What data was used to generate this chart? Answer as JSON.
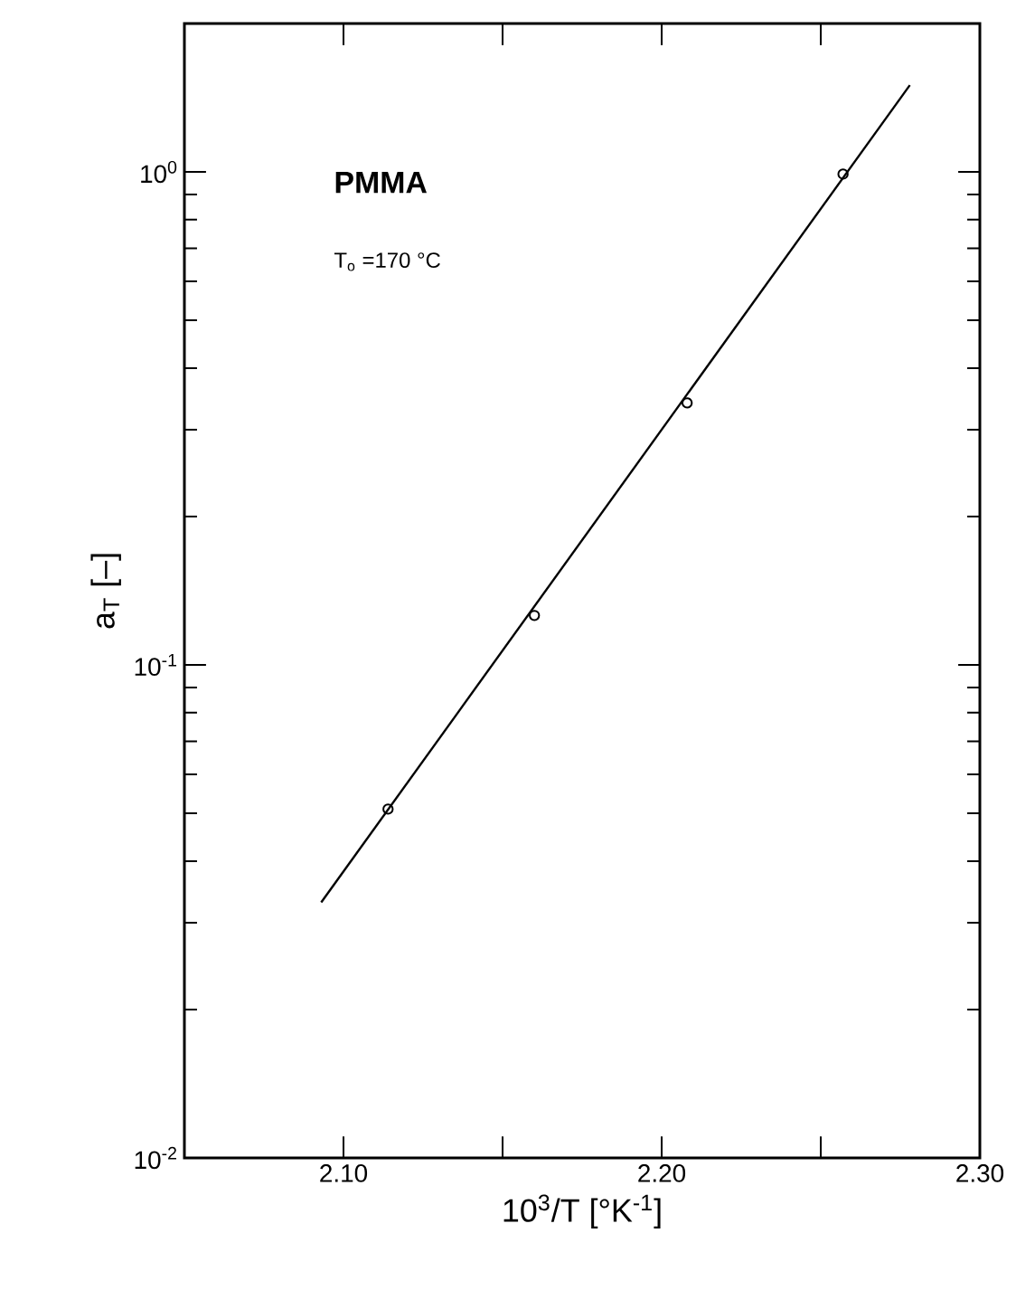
{
  "chart_data": {
    "type": "scatter",
    "xlabel": "10$^{3}$/T   [°K$^{-1}$]",
    "ylabel": "a$_{T}$   [–]",
    "annotations": [
      "PMMA",
      "T$_{o}$ =170 °C"
    ],
    "log": "y",
    "xlim": [
      2.05,
      2.3
    ],
    "ylim": [
      0.01,
      2
    ],
    "xticks": [
      {
        "value": 2.1,
        "label": "2.10"
      },
      {
        "value": 2.15,
        "label": null
      },
      {
        "value": 2.2,
        "label": "2.20"
      },
      {
        "value": 2.25,
        "label": null
      },
      {
        "value": 2.3,
        "label": "2.30"
      }
    ],
    "yticks": [
      {
        "value": 0.01,
        "label": "10$^{-2}$"
      },
      {
        "value": 0.1,
        "label": "10$^{-1}$"
      },
      {
        "value": 1,
        "label": "10$^{0}$"
      }
    ],
    "grid": false,
    "series": [
      {
        "marker": "circle",
        "color": "#000000",
        "x": [
          2.114,
          2.16,
          2.208,
          2.257
        ],
        "values": [
          0.051,
          0.126,
          0.34,
          0.99
        ]
      },
      {
        "type": "line",
        "marker": "none",
        "line_style": "solid",
        "color": "#000000",
        "x": [
          2.093,
          2.278
        ],
        "values": [
          0.033,
          1.5
        ]
      }
    ]
  }
}
